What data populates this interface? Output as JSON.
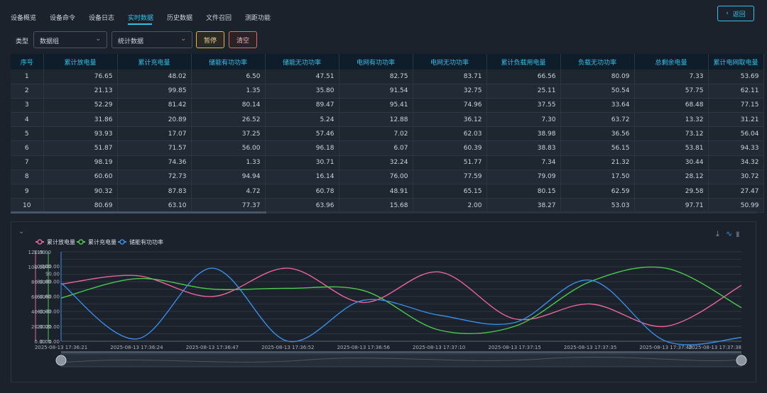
{
  "tabs": [
    {
      "label": "设备概览",
      "active": false
    },
    {
      "label": "设备命令",
      "active": false
    },
    {
      "label": "设备日志",
      "active": false
    },
    {
      "label": "实时数据",
      "active": true
    },
    {
      "label": "历史数据",
      "active": false
    },
    {
      "label": "文件召回",
      "active": false
    },
    {
      "label": "测距功能",
      "active": false
    }
  ],
  "back_label": "返回",
  "toolbar": {
    "type_label": "类型",
    "select_group": "数据组",
    "select_stat": "统计数据",
    "pause_label": "暂停",
    "clear_label": "清空"
  },
  "table": {
    "columns": [
      "序号",
      "累计放电量",
      "累计充电量",
      "储能有功功率",
      "储能无功功率",
      "电网有功功率",
      "电网无功功率",
      "累计负载用电量",
      "负载无功功率",
      "总剩余电量",
      "累计电网取电量"
    ],
    "rows": [
      [
        "1",
        "76.65",
        "48.02",
        "6.50",
        "47.51",
        "82.75",
        "83.71",
        "66.56",
        "80.09",
        "7.33",
        "53.69"
      ],
      [
        "2",
        "21.13",
        "99.85",
        "1.35",
        "35.80",
        "91.54",
        "32.75",
        "25.11",
        "50.54",
        "57.75",
        "62.11"
      ],
      [
        "3",
        "52.29",
        "81.42",
        "80.14",
        "89.47",
        "95.41",
        "74.96",
        "37.55",
        "33.64",
        "68.48",
        "77.15"
      ],
      [
        "4",
        "31.86",
        "20.89",
        "26.52",
        "5.24",
        "12.88",
        "36.12",
        "7.30",
        "63.72",
        "13.32",
        "31.21"
      ],
      [
        "5",
        "93.93",
        "17.07",
        "37.25",
        "57.46",
        "7.02",
        "62.03",
        "38.98",
        "36.56",
        "73.12",
        "56.04"
      ],
      [
        "6",
        "51.87",
        "71.57",
        "56.00",
        "96.18",
        "6.07",
        "60.39",
        "38.83",
        "56.15",
        "53.81",
        "94.33"
      ],
      [
        "7",
        "98.19",
        "74.36",
        "1.33",
        "30.71",
        "32.24",
        "51.77",
        "7.34",
        "21.32",
        "30.44",
        "34.32"
      ],
      [
        "8",
        "60.60",
        "72.73",
        "94.94",
        "16.14",
        "76.00",
        "77.59",
        "79.09",
        "17.50",
        "28.12",
        "30.72"
      ],
      [
        "9",
        "90.32",
        "87.83",
        "4.72",
        "60.78",
        "48.91",
        "65.15",
        "80.15",
        "62.59",
        "29.58",
        "27.47"
      ],
      [
        "10",
        "80.69",
        "63.10",
        "77.37",
        "63.96",
        "15.68",
        "2.00",
        "38.27",
        "53.03",
        "97.71",
        "50.99"
      ]
    ]
  },
  "chart_data": {
    "type": "line",
    "x": [
      "2025-08-13 17:36:21",
      "2025-08-13 17:36:24",
      "2025-08-13 17:36:47",
      "2025-08-13 17:36:52",
      "2025-08-13 17:36:56",
      "2025-08-13 17:37:10",
      "2025-08-13 17:37:15",
      "2025-08-13 17:37:35",
      "2025-08-13 17:37:40",
      "2025-08-13 17:37:38"
    ],
    "series": [
      {
        "name": "累计放电量",
        "color": "#e8649a",
        "values": [
          76.65,
          88,
          60,
          98,
          52,
          93,
          30,
          50,
          20,
          75
        ]
      },
      {
        "name": "累计充电量",
        "color": "#4cc84c",
        "values": [
          58,
          84,
          70,
          71,
          68,
          15,
          20,
          80,
          98,
          45
        ]
      },
      {
        "name": "储能有功功率",
        "color": "#3a8ee6",
        "values": [
          78,
          3,
          98,
          0,
          55,
          35,
          25,
          82,
          0,
          5
        ]
      }
    ],
    "y_axes": [
      {
        "ticks": [
          "0.00",
          "20.00",
          "40.00",
          "60.00",
          "80.00",
          "100.00",
          "120.00"
        ],
        "max": 120
      },
      {
        "ticks": [
          "0.00",
          "20.00",
          "40.00",
          "60.00",
          "80.00",
          "100.00",
          "119.00"
        ],
        "max": 119
      },
      {
        "ticks": [
          "0.00",
          "20.00",
          "40.00",
          "60.00",
          "80.00",
          "90.00",
          "100.00"
        ],
        "max": 119
      }
    ],
    "grid": true,
    "legend": "top-left"
  },
  "icons": {
    "download": "download-icon",
    "line": "line-chart-icon",
    "bar": "bar-chart-icon",
    "collapse": "chevron-down-icon",
    "back": "chevron-left-icon"
  }
}
